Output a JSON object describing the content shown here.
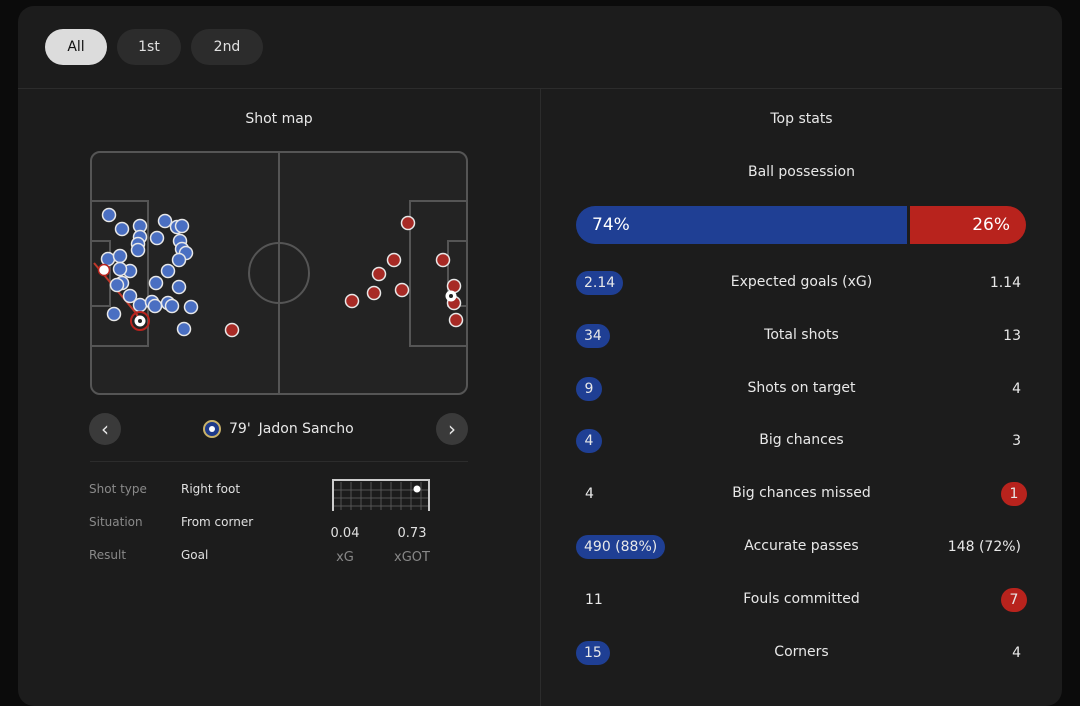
{
  "tabs": [
    {
      "label": "All",
      "active": true
    },
    {
      "label": "1st",
      "active": false
    },
    {
      "label": "2nd",
      "active": false
    }
  ],
  "shot_map": {
    "title": "Shot map",
    "home_color": "#1f3f94",
    "away_color": "#b8231d",
    "selected_shot": {
      "minute": "79'",
      "player": "Jadon Sancho"
    },
    "details": [
      {
        "label": "Shot type",
        "value": "Right foot"
      },
      {
        "label": "Situation",
        "value": "From corner"
      },
      {
        "label": "Result",
        "value": "Goal"
      }
    ],
    "xg": {
      "value": "0.04",
      "label": "xG"
    },
    "xgot": {
      "value": "0.73",
      "label": "xGOT"
    },
    "icons": {
      "prev": "chevron-left-icon",
      "next": "chevron-right-icon",
      "badge": "chelsea-badge-icon"
    }
  },
  "top_stats": {
    "title": "Top stats",
    "possession": {
      "label": "Ball possession",
      "home": "74%",
      "away": "26%",
      "home_value": 74,
      "away_value": 26
    },
    "rows": [
      {
        "label": "Expected goals (xG)",
        "home": "2.14",
        "away": "1.14",
        "home_style": "blue",
        "away_style": "plain"
      },
      {
        "label": "Total shots",
        "home": "34",
        "away": "13",
        "home_style": "blue",
        "away_style": "plain"
      },
      {
        "label": "Shots on target",
        "home": "9",
        "away": "4",
        "home_style": "blue",
        "away_style": "plain"
      },
      {
        "label": "Big chances",
        "home": "4",
        "away": "3",
        "home_style": "blue",
        "away_style": "plain"
      },
      {
        "label": "Big chances missed",
        "home": "4",
        "away": "1",
        "home_style": "plain",
        "away_style": "red"
      },
      {
        "label": "Accurate passes",
        "home": "490 (88%)",
        "away": "148 (72%)",
        "home_style": "blue",
        "away_style": "plain"
      },
      {
        "label": "Fouls committed",
        "home": "11",
        "away": "7",
        "home_style": "plain",
        "away_style": "red"
      },
      {
        "label": "Corners",
        "home": "15",
        "away": "4",
        "home_style": "blue",
        "away_style": "plain"
      }
    ]
  }
}
